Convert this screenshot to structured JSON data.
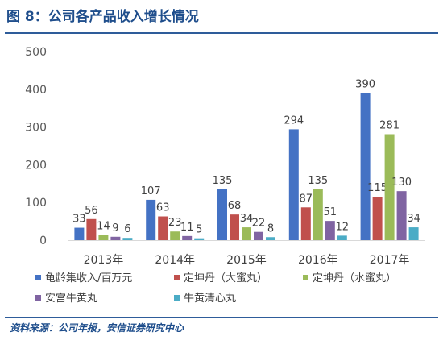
{
  "figure": {
    "title": "图 8：公司各产品收入增长情况",
    "source": "资料来源：公司年报，安信证券研究中心"
  },
  "colors": {
    "title": "#1f4e8c",
    "axis_text": "#595959",
    "series": [
      "#4472c4",
      "#c0504d",
      "#9bbb59",
      "#8064a2",
      "#4bacc6"
    ]
  },
  "chart_data": {
    "type": "bar",
    "categories": [
      "2013年",
      "2014年",
      "2015年",
      "2016年",
      "2017年"
    ],
    "series": [
      {
        "name": "龟龄集收入/百万元",
        "values": [
          33,
          107,
          135,
          294,
          390
        ]
      },
      {
        "name": "定坤丹（大蜜丸）",
        "values": [
          56,
          63,
          68,
          87,
          115
        ]
      },
      {
        "name": "定坤丹（水蜜丸）",
        "values": [
          14,
          23,
          34,
          135,
          281
        ]
      },
      {
        "name": "安宫牛黄丸",
        "values": [
          9,
          11,
          22,
          51,
          130
        ]
      },
      {
        "name": "牛黄清心丸",
        "values": [
          6,
          5,
          8,
          12,
          34
        ]
      }
    ],
    "ylim": [
      0,
      500
    ],
    "yticks": [
      0,
      100,
      200,
      300,
      400,
      500
    ],
    "grid": false,
    "legend_position": "bottom",
    "data_labels": true
  }
}
